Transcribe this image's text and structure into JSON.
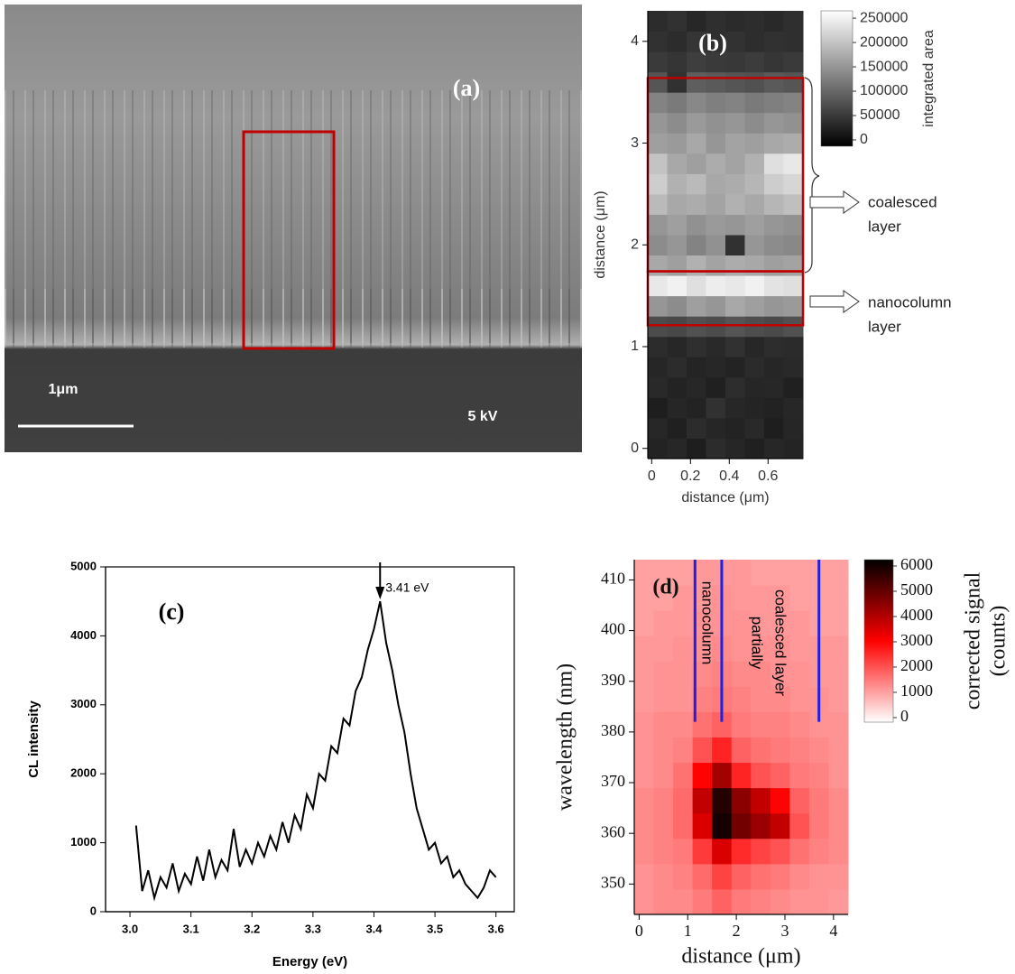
{
  "panel_a": {
    "label": "(a)",
    "scale_bar": "1μm",
    "voltage": "5 kV"
  },
  "chart_data": [
    {
      "type": "heatmap",
      "label": "(b)",
      "x": [
        0.03,
        0.13,
        0.23,
        0.33,
        0.43,
        0.53,
        0.63,
        0.73
      ],
      "y": [
        0,
        0.2,
        0.4,
        0.6,
        0.8,
        1.0,
        1.2,
        1.4,
        1.6,
        1.8,
        2.0,
        2.2,
        2.4,
        2.6,
        2.8,
        3.0,
        3.2,
        3.4,
        3.6,
        3.8,
        4.0,
        4.2
      ],
      "z": [
        [
          25000,
          30000,
          20000,
          35000,
          28000,
          22000,
          30000,
          26000
        ],
        [
          30000,
          22000,
          35000,
          28000,
          25000,
          32000,
          20000,
          28000
        ],
        [
          20000,
          28000,
          25000,
          40000,
          30000,
          26000,
          24000,
          30000
        ],
        [
          32000,
          25000,
          30000,
          22000,
          36000,
          28000,
          30000,
          22000
        ],
        [
          28000,
          35000,
          26000,
          30000,
          25000,
          34000,
          28000,
          32000
        ],
        [
          35000,
          30000,
          38000,
          32000,
          40000,
          30000,
          36000,
          34000
        ],
        [
          70000,
          65000,
          75000,
          70000,
          80000,
          72000,
          68000,
          75000
        ],
        [
          150000,
          140000,
          160000,
          150000,
          170000,
          160000,
          150000,
          155000
        ],
        [
          240000,
          250000,
          230000,
          245000,
          240000,
          250000,
          235000,
          230000
        ],
        [
          170000,
          160000,
          180000,
          165000,
          175000,
          170000,
          160000,
          165000
        ],
        [
          140000,
          150000,
          130000,
          145000,
          40000,
          150000,
          140000,
          135000
        ],
        [
          150000,
          160000,
          145000,
          155000,
          150000,
          160000,
          150000,
          145000
        ],
        [
          190000,
          170000,
          175000,
          165000,
          180000,
          170000,
          185000,
          195000
        ],
        [
          210000,
          180000,
          190000,
          170000,
          175000,
          185000,
          210000,
          220000
        ],
        [
          200000,
          170000,
          160000,
          175000,
          165000,
          180000,
          230000,
          240000
        ],
        [
          160000,
          155000,
          170000,
          150000,
          165000,
          160000,
          170000,
          175000
        ],
        [
          150000,
          140000,
          155000,
          145000,
          150000,
          140000,
          150000,
          145000
        ],
        [
          130000,
          120000,
          135000,
          125000,
          130000,
          120000,
          125000,
          130000
        ],
        [
          80000,
          40000,
          90000,
          85000,
          80000,
          75000,
          85000,
          80000
        ],
        [
          50000,
          45000,
          55000,
          50000,
          48000,
          52000,
          46000,
          50000
        ],
        [
          40000,
          35000,
          45000,
          38000,
          42000,
          36000,
          40000,
          38000
        ],
        [
          35000,
          40000,
          30000,
          38000,
          34000,
          36000,
          32000,
          38000
        ]
      ],
      "xlim": [
        -0.02,
        0.78
      ],
      "ylim": [
        -0.1,
        4.3
      ],
      "xticks": [
        0,
        0.2,
        0.4,
        0.6
      ],
      "yticks": [
        0,
        1,
        2,
        3,
        4
      ],
      "xlabel": "distance (μm)",
      "ylabel": "distance (μm)",
      "colorbar": {
        "label": [
          "integrated area"
        ],
        "lim": [
          -13000,
          265000
        ],
        "ticks": [
          0,
          50000,
          100000,
          150000,
          200000,
          250000
        ],
        "colors": [
          "#000000",
          "#ffffff"
        ]
      },
      "regions": [
        [
          1.74,
          3.64
        ],
        [
          1.21,
          1.74
        ]
      ],
      "region_color": "#c00000",
      "annotations": [
        {
          "lines": [
            "coalesced",
            "layer"
          ]
        },
        {
          "lines": [
            "nanocolumn",
            "layer"
          ]
        }
      ]
    },
    {
      "type": "line",
      "label": "(c)",
      "x": [
        3.01,
        3.02,
        3.03,
        3.04,
        3.05,
        3.06,
        3.07,
        3.08,
        3.09,
        3.1,
        3.11,
        3.12,
        3.13,
        3.14,
        3.15,
        3.16,
        3.17,
        3.18,
        3.19,
        3.2,
        3.21,
        3.22,
        3.23,
        3.24,
        3.25,
        3.26,
        3.27,
        3.28,
        3.29,
        3.3,
        3.31,
        3.32,
        3.33,
        3.34,
        3.35,
        3.36,
        3.37,
        3.38,
        3.39,
        3.4,
        3.41,
        3.42,
        3.43,
        3.44,
        3.45,
        3.46,
        3.47,
        3.48,
        3.49,
        3.5,
        3.51,
        3.52,
        3.53,
        3.54,
        3.55,
        3.56,
        3.57,
        3.58,
        3.59,
        3.6
      ],
      "values": [
        1250,
        300,
        600,
        200,
        500,
        350,
        700,
        300,
        550,
        400,
        800,
        450,
        900,
        500,
        750,
        600,
        1200,
        650,
        900,
        700,
        1000,
        800,
        1100,
        900,
        1300,
        1000,
        1400,
        1200,
        1700,
        1500,
        2000,
        1900,
        2400,
        2300,
        2800,
        2700,
        3200,
        3400,
        3800,
        4100,
        4500,
        3900,
        3500,
        3000,
        2600,
        2000,
        1500,
        1200,
        900,
        1000,
        700,
        800,
        500,
        600,
        400,
        300,
        200,
        350,
        600,
        500
      ],
      "color": "#000000",
      "xlim": [
        2.96,
        3.63
      ],
      "ylim": [
        0,
        5000
      ],
      "xticks": [
        {
          "value": 3,
          "label": "3.0"
        },
        3.1,
        3.2,
        3.3,
        3.4,
        3.5,
        {
          "value": 3.6,
          "label": "3.6"
        }
      ],
      "yticks": [
        0,
        1000,
        2000,
        3000,
        4000,
        5000
      ],
      "xlabel": "Energy (eV)",
      "ylabel": "CL intensity",
      "annotation": {
        "label": "3.41 eV",
        "x": 3.41
      }
    },
    {
      "type": "heatmap",
      "label": "(d)",
      "x": [
        0.1,
        0.5,
        0.9,
        1.3,
        1.7,
        2.1,
        2.5,
        2.9,
        3.3,
        3.7,
        4.1
      ],
      "y": [
        346.5,
        351.5,
        356.5,
        361.5,
        366.5,
        371.5,
        376.5,
        381.5,
        386.5,
        391.5,
        396.5,
        401.5,
        406.5,
        411.5
      ],
      "z": [
        [
          1200,
          1300,
          1300,
          1500,
          1800,
          1500,
          1400,
          1300,
          1200,
          1200,
          1100
        ],
        [
          1200,
          1300,
          1400,
          1700,
          2200,
          1800,
          1600,
          1500,
          1300,
          1200,
          1200
        ],
        [
          1300,
          1400,
          1500,
          2300,
          3500,
          2500,
          2200,
          2000,
          1600,
          1400,
          1300
        ],
        [
          1300,
          1400,
          1700,
          3500,
          6000,
          4800,
          4300,
          3800,
          2000,
          1500,
          1300
        ],
        [
          1300,
          1400,
          1700,
          3800,
          5800,
          4500,
          3800,
          3000,
          1800,
          1500,
          1300
        ],
        [
          1200,
          1300,
          1600,
          3000,
          4200,
          2600,
          2000,
          1800,
          1500,
          1400,
          1200
        ],
        [
          1200,
          1300,
          1400,
          2000,
          2600,
          1800,
          1600,
          1500,
          1400,
          1300,
          1200
        ],
        [
          1200,
          1300,
          1300,
          1600,
          1800,
          1500,
          1400,
          1400,
          1300,
          1200,
          1200
        ],
        [
          1100,
          1200,
          1200,
          1400,
          1500,
          1400,
          1300,
          1300,
          1200,
          1200,
          1100
        ],
        [
          1100,
          1200,
          1200,
          1300,
          1400,
          1300,
          1300,
          1200,
          1200,
          1100,
          1100
        ],
        [
          1100,
          1100,
          1200,
          1200,
          1300,
          1200,
          1200,
          1200,
          1100,
          1100,
          1100
        ],
        [
          1000,
          1100,
          1100,
          1200,
          1200,
          1200,
          1100,
          1100,
          1100,
          1000,
          1000
        ],
        [
          1000,
          1000,
          1100,
          1100,
          1200,
          1100,
          1100,
          1100,
          1000,
          1000,
          1000
        ],
        [
          1000,
          1000,
          1000,
          1100,
          1100,
          1100,
          1000,
          1000,
          1000,
          1000,
          1000
        ]
      ],
      "xlim": [
        -0.1,
        4.3
      ],
      "ylim": [
        344,
        414
      ],
      "xticks": [
        0,
        1,
        2,
        3,
        4
      ],
      "yticks": [
        350,
        360,
        370,
        380,
        390,
        400,
        410
      ],
      "xlabel": "distance (μm)",
      "ylabel": "wavelength (nm)",
      "colorbar": {
        "label": [
          "corrected signal",
          "(counts)"
        ],
        "lim": [
          -180,
          6250
        ],
        "ticks": [
          0,
          1000,
          2000,
          3000,
          4000,
          5000,
          6000
        ],
        "colors": [
          "#ffffff",
          "#ff0000",
          "#000000"
        ]
      },
      "boundaries": {
        "x": [
          1.15,
          1.7,
          3.7
        ],
        "from": 382,
        "color": "#2020e0"
      },
      "annotations": [
        {
          "lines": [
            "nanocolumn"
          ]
        },
        {
          "lines": [
            "partially",
            "coalesced layer"
          ]
        }
      ]
    }
  ]
}
